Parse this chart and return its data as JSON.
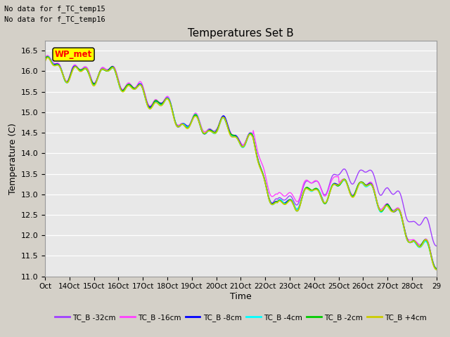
{
  "title": "Temperatures Set B",
  "xlabel": "Time",
  "ylabel": "Temperature (C)",
  "ylim": [
    11.0,
    16.75
  ],
  "yticks": [
    11.0,
    11.5,
    12.0,
    12.5,
    13.0,
    13.5,
    14.0,
    14.5,
    15.0,
    15.5,
    16.0,
    16.5
  ],
  "xtick_labels": [
    "Oct",
    "14Oct",
    "15Oct",
    "16Oct",
    "17Oct",
    "18Oct",
    "19Oct",
    "20Oct",
    "21Oct",
    "22Oct",
    "23Oct",
    "24Oct",
    "25Oct",
    "26Oct",
    "27Oct",
    "28Oct",
    "29"
  ],
  "annotation1": "No data for f_TC_temp15",
  "annotation2": "No data for f_TC_temp16",
  "wp_met_label": "WP_met",
  "legend_entries": [
    {
      "label": "TC_B -32cm",
      "color": "#a040ff"
    },
    {
      "label": "TC_B -16cm",
      "color": "#ff40ff"
    },
    {
      "label": "TC_B -8cm",
      "color": "#0000ff"
    },
    {
      "label": "TC_B -4cm",
      "color": "#00ffff"
    },
    {
      "label": "TC_B -2cm",
      "color": "#00cc00"
    },
    {
      "label": "TC_B +4cm",
      "color": "#cccc00"
    }
  ],
  "fig_bg": "#d4d0c8",
  "plot_bg": "#e8e8e8"
}
